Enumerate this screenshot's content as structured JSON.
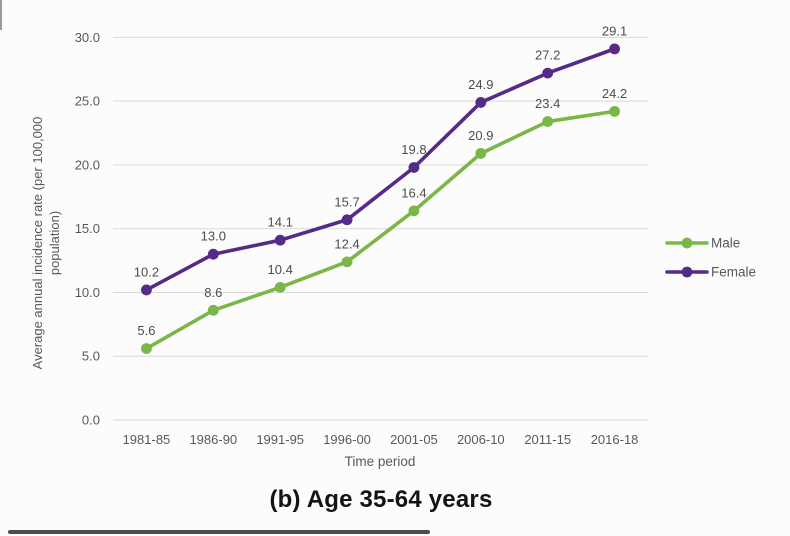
{
  "chart_data": {
    "type": "line",
    "title": "(b) Age 35-64 years",
    "xlabel": "Time period",
    "ylabel": "Average annual incidence rate (per 100,000 population)",
    "ylabel_lines": [
      "Average annual incidence rate (per 100,000",
      "population)"
    ],
    "categories": [
      "1981-85",
      "1986-90",
      "1991-95",
      "1996-00",
      "2001-05",
      "2006-10",
      "2011-15",
      "2016-18"
    ],
    "series": [
      {
        "name": "Male",
        "color": "#7ab648",
        "values": [
          5.6,
          8.6,
          10.4,
          12.4,
          16.4,
          20.9,
          23.4,
          24.2
        ]
      },
      {
        "name": "Female",
        "color": "#552b87",
        "values": [
          10.2,
          13.0,
          14.1,
          15.7,
          19.8,
          24.9,
          27.2,
          29.1
        ]
      }
    ],
    "ylim": [
      0,
      30
    ],
    "ytick_step": 5,
    "ytick_labels": [
      "0.0",
      "5.0",
      "10.0",
      "15.0",
      "20.0",
      "25.0",
      "30.0"
    ],
    "grid": true,
    "legend_position": "right",
    "data_labels": true,
    "colors": {
      "gridline": "#d9d9d9",
      "tick_text": "#595959",
      "data_label_text": "#4d4d4d",
      "legend_text": "#595959"
    }
  }
}
